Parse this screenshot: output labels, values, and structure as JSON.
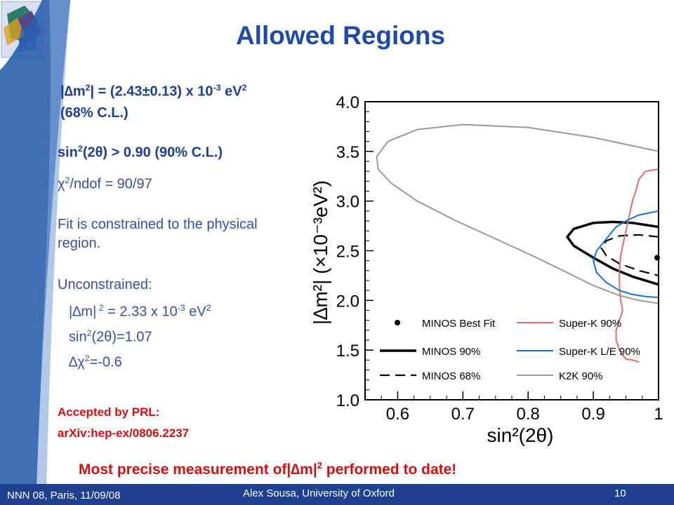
{
  "slide": {
    "title": "Allowed Regions",
    "result_dm2": {
      "prefix": "|∆m",
      "sup1": "2",
      "mid": "| = (2.43±0.13) x 10",
      "sup2": "-3",
      "unit": " eV",
      "sup3": "2"
    },
    "result_cl": "(68% C.L.)",
    "mixing": {
      "prefix": "sin",
      "sup": "2",
      "rest": "(2θ) > 0.90  (90% C.L.)"
    },
    "chi2": {
      "prefix": "χ",
      "sup": "2",
      "rest": "/ndof = 90/97"
    },
    "fit_note": "Fit is constrained to the physical region.",
    "unconstrained_heading": "Unconstrained:",
    "unc_dm2": {
      "prefix": "|∆m|",
      "sup1": " 2",
      "mid": " = 2.33 x 10",
      "sup2": "-3",
      "unit": " eV",
      "sup3": "2"
    },
    "unc_sin": {
      "prefix": "sin",
      "sup": "2",
      "rest": "(2θ)=1.07"
    },
    "unc_dchi": {
      "prefix": "∆χ",
      "sup": "2",
      "rest": "=-0.6"
    },
    "accepted": "Accepted by PRL:",
    "arxiv": "arXiv:hep-ex/0806.2237",
    "highlight": {
      "prefix": "Most precise measurement of|∆m|",
      "sup": "2",
      "rest": " performed to date!"
    }
  },
  "footer": {
    "left": "NNN 08, Paris, 11/09/08",
    "center": "Alex Sousa, University of Oxford",
    "page": "10"
  },
  "colors": {
    "title": "#1f4aa6",
    "footer_bar": "#1f3f8f",
    "highlight": "#d01010"
  },
  "chart_data": {
    "type": "line",
    "xlabel": "sin²(2θ)",
    "ylabel": "|∆m²| (×10⁻³eV²)",
    "xlim": [
      0.55,
      1.0
    ],
    "ylim": [
      1.0,
      4.0
    ],
    "xticks": [
      "0.6",
      "0.7",
      "0.8",
      "0.9",
      "1"
    ],
    "yticks": [
      "1.0",
      "1.5",
      "2.0",
      "2.5",
      "3.0",
      "3.5",
      "4.0"
    ],
    "best_fit": {
      "x": 1.0,
      "y": 2.43
    },
    "series": [
      {
        "name": "MINOS 90%",
        "color": "#000000",
        "style": "solid-thick",
        "x": [
          1.0,
          0.96,
          0.93,
          0.9,
          0.87,
          0.86,
          0.87,
          0.9,
          0.93,
          0.96,
          1.0
        ],
        "y": [
          2.74,
          2.78,
          2.79,
          2.78,
          2.72,
          2.64,
          2.55,
          2.43,
          2.32,
          2.24,
          2.16
        ]
      },
      {
        "name": "MINOS 68%",
        "color": "#000000",
        "style": "dashed",
        "x": [
          1.0,
          0.97,
          0.94,
          0.92,
          0.912,
          0.92,
          0.94,
          0.97,
          1.0
        ],
        "y": [
          2.64,
          2.66,
          2.65,
          2.6,
          2.53,
          2.45,
          2.37,
          2.3,
          2.25
        ]
      },
      {
        "name": "Super-K 90%",
        "color": "#e86a6a",
        "style": "solid",
        "x": [
          1.0,
          0.98,
          0.97,
          0.965,
          0.96,
          0.955,
          0.95,
          0.945,
          0.942,
          0.94,
          0.94,
          0.942,
          0.945,
          0.94,
          0.935,
          0.935,
          0.94,
          0.945,
          0.95,
          0.96,
          0.97
        ],
        "y": [
          3.32,
          3.3,
          3.22,
          3.1,
          3.0,
          2.85,
          2.7,
          2.55,
          2.45,
          2.3,
          2.15,
          2.0,
          1.9,
          1.8,
          1.7,
          1.6,
          1.5,
          1.45,
          1.41,
          1.4,
          1.38
        ]
      },
      {
        "name": "Super-K L/E 90%",
        "color": "#1a6fd0",
        "style": "solid",
        "x": [
          1.0,
          0.97,
          0.95,
          0.935,
          0.925,
          0.915,
          0.905,
          0.9,
          0.905,
          0.92,
          0.94,
          0.96,
          0.98,
          1.0
        ],
        "y": [
          2.9,
          2.86,
          2.8,
          2.74,
          2.66,
          2.58,
          2.5,
          2.4,
          2.28,
          2.18,
          2.1,
          2.06,
          2.04,
          2.03
        ]
      },
      {
        "name": "K2K 90%",
        "color": "#999999",
        "style": "solid",
        "x": [
          1.0,
          0.9,
          0.8,
          0.7,
          0.63,
          0.585,
          0.568,
          0.57,
          0.59,
          0.63,
          0.69,
          0.75,
          0.81,
          0.86,
          0.9,
          0.94,
          0.97,
          1.0
        ],
        "y": [
          3.5,
          3.64,
          3.74,
          3.77,
          3.72,
          3.6,
          3.45,
          3.32,
          3.18,
          3.0,
          2.8,
          2.62,
          2.44,
          2.28,
          2.15,
          2.05,
          2.0,
          1.97
        ]
      }
    ],
    "legend": {
      "placement": "bottom-inside",
      "entries": [
        "MINOS Best Fit",
        "MINOS 90%",
        "MINOS 68%",
        "Super-K 90%",
        "Super-K L/E 90%",
        "K2K 90%"
      ]
    }
  }
}
